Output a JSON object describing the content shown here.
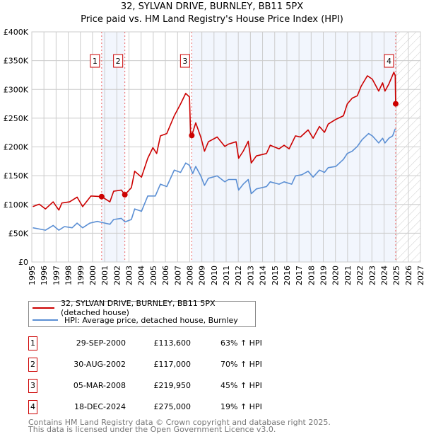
{
  "chart_data": {
    "type": "line",
    "title": "32, SYLVAN DRIVE, BURNLEY, BB11 5PX",
    "subtitle": "Price paid vs. HM Land Registry's House Price Index (HPI)",
    "xlim": [
      1995,
      2027
    ],
    "ylim": [
      0,
      400000
    ],
    "x_ticks": [
      "1995",
      "1996",
      "1997",
      "1998",
      "1999",
      "2000",
      "2001",
      "2002",
      "2003",
      "2004",
      "2005",
      "2006",
      "2007",
      "2008",
      "2009",
      "2010",
      "2011",
      "2012",
      "2013",
      "2014",
      "2015",
      "2016",
      "2017",
      "2018",
      "2019",
      "2020",
      "2021",
      "2022",
      "2023",
      "2024",
      "2025",
      "2026",
      "2027"
    ],
    "y_ticks": [
      {
        "v": 0,
        "label": "£0"
      },
      {
        "v": 50000,
        "label": "£50K"
      },
      {
        "v": 100000,
        "label": "£100K"
      },
      {
        "v": 150000,
        "label": "£150K"
      },
      {
        "v": 200000,
        "label": "£200K"
      },
      {
        "v": 250000,
        "label": "£250K"
      },
      {
        "v": 300000,
        "label": "£300K"
      },
      {
        "v": 350000,
        "label": "£350K"
      },
      {
        "v": 400000,
        "label": "£400K"
      }
    ],
    "grid": true,
    "shaded_periods": [
      [
        2000.75,
        2002.66
      ],
      [
        2008.17,
        2024.96
      ]
    ],
    "forecast_hatch": [
      2025,
      2027
    ],
    "colors": {
      "property": "#cc0000",
      "hpi": "#5b8fd4",
      "shade": "#f2f6fd"
    },
    "series": [
      {
        "name": "32, SYLVAN DRIVE, BURNLEY, BB11 5PX (detached house)",
        "color": "#cc0000",
        "points": [
          [
            1995.09,
            96.3
          ],
          [
            1995.61,
            100.4
          ],
          [
            1996.13,
            92.2
          ],
          [
            1996.76,
            104.5
          ],
          [
            1997.23,
            90.2
          ],
          [
            1997.48,
            102.5
          ],
          [
            1998.11,
            104.5
          ],
          [
            1998.73,
            112.7
          ],
          [
            1999.19,
            96.3
          ],
          [
            1999.87,
            114.7
          ],
          [
            2000.75,
            113.6
          ],
          [
            2001.43,
            104.5
          ],
          [
            2001.74,
            122.9
          ],
          [
            2002.37,
            125.0
          ],
          [
            2002.66,
            117.0
          ],
          [
            2003.2,
            129.1
          ],
          [
            2003.47,
            157.8
          ],
          [
            2004.03,
            147.5
          ],
          [
            2004.55,
            180.3
          ],
          [
            2004.97,
            198.8
          ],
          [
            2005.28,
            188.5
          ],
          [
            2005.59,
            219.2
          ],
          [
            2006.11,
            223.3
          ],
          [
            2006.73,
            254.1
          ],
          [
            2007.25,
            274.6
          ],
          [
            2007.67,
            293.0
          ],
          [
            2007.98,
            286.9
          ],
          [
            2008.08,
            221.3
          ],
          [
            2008.17,
            219.95
          ],
          [
            2008.5,
            241.8
          ],
          [
            2008.91,
            217.2
          ],
          [
            2009.22,
            192.6
          ],
          [
            2009.54,
            209.0
          ],
          [
            2010.26,
            217.2
          ],
          [
            2010.89,
            200.8
          ],
          [
            2011.2,
            204.9
          ],
          [
            2011.82,
            209.0
          ],
          [
            2012.03,
            180.3
          ],
          [
            2012.41,
            192.6
          ],
          [
            2012.82,
            209.8
          ],
          [
            2013.07,
            172.1
          ],
          [
            2013.49,
            184.4
          ],
          [
            2014.32,
            188.5
          ],
          [
            2014.63,
            202.9
          ],
          [
            2015.36,
            196.7
          ],
          [
            2015.77,
            202.9
          ],
          [
            2016.19,
            196.7
          ],
          [
            2016.71,
            219.2
          ],
          [
            2017.12,
            217.2
          ],
          [
            2017.75,
            229.5
          ],
          [
            2018.16,
            215.1
          ],
          [
            2018.68,
            235.6
          ],
          [
            2019.1,
            225.4
          ],
          [
            2019.41,
            239.7
          ],
          [
            2020.03,
            247.9
          ],
          [
            2020.66,
            254.1
          ],
          [
            2020.97,
            274.6
          ],
          [
            2021.38,
            284.8
          ],
          [
            2021.8,
            288.9
          ],
          [
            2022.11,
            305.3
          ],
          [
            2022.63,
            323.7
          ],
          [
            2023.04,
            317.6
          ],
          [
            2023.56,
            297.1
          ],
          [
            2023.88,
            311.4
          ],
          [
            2024.08,
            297.1
          ],
          [
            2024.4,
            309.4
          ],
          [
            2024.81,
            329.9
          ],
          [
            2024.92,
            323.7
          ],
          [
            2024.96,
            275.0
          ]
        ]
      },
      {
        "name": "HPI: Average price, detached house, Burnley",
        "color": "#5b8fd4",
        "points": [
          [
            1995.09,
            59.4
          ],
          [
            1995.61,
            57.4
          ],
          [
            1996.13,
            55.3
          ],
          [
            1996.76,
            63.5
          ],
          [
            1997.23,
            55.3
          ],
          [
            1997.69,
            61.5
          ],
          [
            1998.32,
            59.4
          ],
          [
            1998.73,
            67.6
          ],
          [
            1999.19,
            59.4
          ],
          [
            1999.78,
            67.6
          ],
          [
            2000.39,
            70.5
          ],
          [
            2001.02,
            67.6
          ],
          [
            2001.43,
            65.6
          ],
          [
            2001.74,
            73.8
          ],
          [
            2002.37,
            75.8
          ],
          [
            2002.68,
            69.7
          ],
          [
            2003.2,
            73.8
          ],
          [
            2003.47,
            92.2
          ],
          [
            2004.03,
            88.1
          ],
          [
            2004.55,
            114.7
          ],
          [
            2005.17,
            114.7
          ],
          [
            2005.59,
            135.2
          ],
          [
            2006.11,
            131.1
          ],
          [
            2006.73,
            159.8
          ],
          [
            2007.25,
            155.7
          ],
          [
            2007.67,
            172.1
          ],
          [
            2007.98,
            168.0
          ],
          [
            2008.25,
            153.7
          ],
          [
            2008.5,
            166.0
          ],
          [
            2008.91,
            149.6
          ],
          [
            2009.22,
            133.2
          ],
          [
            2009.54,
            145.5
          ],
          [
            2010.26,
            149.6
          ],
          [
            2010.89,
            139.3
          ],
          [
            2011.2,
            143.4
          ],
          [
            2011.82,
            143.4
          ],
          [
            2012.03,
            125.0
          ],
          [
            2012.41,
            135.2
          ],
          [
            2012.82,
            143.4
          ],
          [
            2013.07,
            118.8
          ],
          [
            2013.49,
            127.0
          ],
          [
            2014.32,
            131.1
          ],
          [
            2014.63,
            139.3
          ],
          [
            2015.36,
            135.2
          ],
          [
            2015.77,
            139.3
          ],
          [
            2016.4,
            135.2
          ],
          [
            2016.71,
            149.6
          ],
          [
            2017.23,
            151.6
          ],
          [
            2017.75,
            157.8
          ],
          [
            2018.16,
            147.5
          ],
          [
            2018.68,
            159.8
          ],
          [
            2019.1,
            155.7
          ],
          [
            2019.41,
            163.9
          ],
          [
            2020.03,
            166.0
          ],
          [
            2020.66,
            178.3
          ],
          [
            2020.97,
            188.5
          ],
          [
            2021.38,
            192.6
          ],
          [
            2021.8,
            200.8
          ],
          [
            2022.21,
            213.1
          ],
          [
            2022.73,
            223.3
          ],
          [
            2023.04,
            219.2
          ],
          [
            2023.56,
            206.9
          ],
          [
            2023.88,
            215.1
          ],
          [
            2024.08,
            206.9
          ],
          [
            2024.4,
            215.1
          ],
          [
            2024.71,
            219.2
          ],
          [
            2024.92,
            231.5
          ]
        ]
      }
    ],
    "value_unit": "thousand GBP",
    "sales": [
      {
        "label": "1",
        "year": 2000.75,
        "value": 113.6
      },
      {
        "label": "2",
        "year": 2002.66,
        "value": 117.0
      },
      {
        "label": "3",
        "year": 2008.17,
        "value": 219.95
      },
      {
        "label": "4",
        "year": 2024.96,
        "value": 275.0
      }
    ]
  },
  "title_line1": "32, SYLVAN DRIVE, BURNLEY, BB11 5PX",
  "title_line2": "Price paid vs. HM Land Registry's House Price Index (HPI)",
  "legend": {
    "property": "32, SYLVAN DRIVE, BURNLEY, BB11 5PX (detached house)",
    "hpi": "HPI: Average price, detached house, Burnley"
  },
  "transactions": [
    {
      "num": "1",
      "date": "29-SEP-2000",
      "price": "£113,600",
      "hpi": "63% ↑ HPI"
    },
    {
      "num": "2",
      "date": "30-AUG-2002",
      "price": "£117,000",
      "hpi": "70% ↑ HPI"
    },
    {
      "num": "3",
      "date": "05-MAR-2008",
      "price": "£219,950",
      "hpi": "45% ↑ HPI"
    },
    {
      "num": "4",
      "date": "18-DEC-2024",
      "price": "£275,000",
      "hpi": "19% ↑ HPI"
    }
  ],
  "footer": {
    "line1": "Contains HM Land Registry data © Crown copyright and database right 2025.",
    "line2": "This data is licensed under the Open Government Licence v3.0."
  }
}
